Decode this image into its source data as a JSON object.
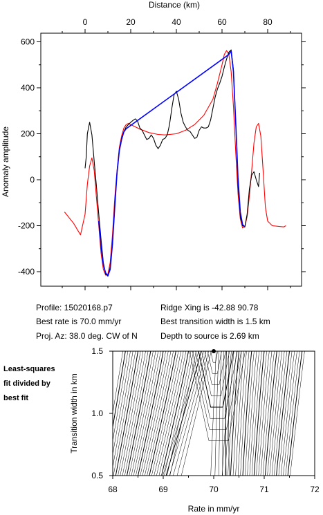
{
  "profile_chart": {
    "type": "line",
    "xlabel": "Distance (km)",
    "ylabel": "Anomaly amplitude",
    "xlim": [
      -9,
      89
    ],
    "ylim": [
      -460,
      620
    ],
    "xticks": [
      0,
      20,
      40,
      60,
      80
    ],
    "yticks": [
      -400,
      -200,
      0,
      200,
      400,
      600
    ],
    "series": [
      {
        "color": "#ff0000",
        "points": [
          [
            -9,
            -140
          ],
          [
            -5,
            -190
          ],
          [
            -2,
            -240
          ],
          [
            0,
            -150
          ],
          [
            1,
            -20
          ],
          [
            2,
            60
          ],
          [
            3,
            95
          ],
          [
            4,
            40
          ],
          [
            5,
            -80
          ],
          [
            6,
            -200
          ],
          [
            7,
            -320
          ],
          [
            8,
            -390
          ],
          [
            9,
            -415
          ],
          [
            10,
            -410
          ],
          [
            11,
            -360
          ],
          [
            12,
            -240
          ],
          [
            13,
            -80
          ],
          [
            14,
            40
          ],
          [
            15,
            140
          ],
          [
            16,
            190
          ],
          [
            17,
            225
          ],
          [
            18,
            240
          ],
          [
            19,
            245
          ],
          [
            21,
            235
          ],
          [
            24,
            220
          ],
          [
            28,
            205
          ],
          [
            32,
            197
          ],
          [
            35,
            195
          ],
          [
            40,
            200
          ],
          [
            44,
            215
          ],
          [
            48,
            240
          ],
          [
            52,
            280
          ],
          [
            56,
            350
          ],
          [
            58,
            420
          ],
          [
            60,
            500
          ],
          [
            61,
            545
          ],
          [
            62,
            562
          ],
          [
            63,
            545
          ],
          [
            64,
            470
          ],
          [
            65,
            320
          ],
          [
            66,
            120
          ],
          [
            67,
            -60
          ],
          [
            68,
            -170
          ],
          [
            69,
            -210
          ],
          [
            70,
            -205
          ],
          [
            71,
            -160
          ],
          [
            72,
            -70
          ],
          [
            73,
            40
          ],
          [
            74,
            160
          ],
          [
            75,
            230
          ],
          [
            76,
            245
          ],
          [
            77,
            190
          ],
          [
            78,
            40
          ],
          [
            79,
            -120
          ],
          [
            80,
            -180
          ],
          [
            82,
            -200
          ],
          [
            87,
            -205
          ],
          [
            88,
            -200
          ]
        ]
      },
      {
        "color": "#000000",
        "points": [
          [
            0,
            50
          ],
          [
            0.5,
            100
          ],
          [
            1,
            200
          ],
          [
            2,
            250
          ],
          [
            3,
            195
          ],
          [
            4,
            80
          ],
          [
            5,
            -30
          ],
          [
            6,
            -150
          ],
          [
            7,
            -260
          ],
          [
            8,
            -360
          ],
          [
            9,
            -410
          ],
          [
            10,
            -420
          ],
          [
            11,
            -380
          ],
          [
            12,
            -280
          ],
          [
            13,
            -120
          ],
          [
            14,
            30
          ],
          [
            15,
            130
          ],
          [
            16,
            180
          ],
          [
            17,
            210
          ],
          [
            18,
            230
          ],
          [
            19,
            240
          ],
          [
            20,
            250
          ],
          [
            21,
            258
          ],
          [
            22,
            265
          ],
          [
            23,
            255
          ],
          [
            24,
            225
          ],
          [
            25,
            215
          ],
          [
            26,
            195
          ],
          [
            27,
            175
          ],
          [
            28,
            180
          ],
          [
            29,
            195
          ],
          [
            30,
            180
          ],
          [
            31,
            150
          ],
          [
            32,
            135
          ],
          [
            33,
            150
          ],
          [
            34,
            175
          ],
          [
            35,
            180
          ],
          [
            36,
            195
          ],
          [
            37,
            240
          ],
          [
            38,
            310
          ],
          [
            39,
            370
          ],
          [
            40,
            385
          ],
          [
            41,
            350
          ],
          [
            42,
            290
          ],
          [
            43,
            250
          ],
          [
            44,
            230
          ],
          [
            45,
            215
          ],
          [
            46,
            210
          ],
          [
            47,
            195
          ],
          [
            48,
            180
          ],
          [
            49,
            185
          ],
          [
            50,
            215
          ],
          [
            51,
            230
          ],
          [
            52,
            225
          ],
          [
            53,
            225
          ],
          [
            54,
            230
          ],
          [
            55,
            260
          ],
          [
            56,
            310
          ],
          [
            57,
            360
          ],
          [
            58,
            395
          ],
          [
            59,
            420
          ],
          [
            60,
            450
          ],
          [
            61,
            490
          ],
          [
            62,
            525
          ],
          [
            63,
            555
          ],
          [
            64,
            565
          ],
          [
            65,
            480
          ],
          [
            66,
            250
          ],
          [
            67,
            -20
          ],
          [
            68,
            -160
          ],
          [
            69,
            -200
          ],
          [
            70,
            -205
          ],
          [
            71,
            -150
          ],
          [
            72,
            -40
          ],
          [
            73,
            20
          ],
          [
            74,
            35
          ],
          [
            75,
            0
          ],
          [
            76,
            -30
          ],
          [
            76.5,
            30
          ]
        ]
      },
      {
        "color": "#0000ff",
        "points": [
          [
            6,
            -180
          ],
          [
            7,
            -290
          ],
          [
            8,
            -370
          ],
          [
            9,
            -405
          ],
          [
            10,
            -418
          ],
          [
            11,
            -390
          ],
          [
            12,
            -280
          ],
          [
            13,
            -120
          ],
          [
            14,
            30
          ],
          [
            15,
            125
          ],
          [
            16,
            175
          ],
          [
            17,
            208
          ],
          [
            18,
            222
          ],
          [
            63,
            545
          ],
          [
            64,
            560
          ],
          [
            65,
            470
          ],
          [
            66,
            250
          ],
          [
            67,
            10
          ],
          [
            68,
            -140
          ],
          [
            69,
            -195
          ],
          [
            70,
            -205
          ]
        ]
      }
    ]
  },
  "info": {
    "profile": "Profile: 15020168.p7",
    "best_rate": "Best rate is 70.0 mm/yr",
    "proj_az": "Proj. Az: 38.0 deg. CW of N",
    "ridge_xing": "Ridge Xing is -42.88 90.78",
    "best_width": "Best transition width is 1.5 km",
    "depth": "Depth to source is   2.69 km"
  },
  "side_note": {
    "line1": "Least-squares",
    "line2": "fit divided by",
    "line3": "best fit"
  },
  "contour_chart": {
    "type": "contour",
    "xlabel": "Rate in mm/yr",
    "ylabel": "Transition width in km",
    "xlim": [
      68,
      72
    ],
    "ylim": [
      0.5,
      1.5
    ],
    "xticks": [
      "68",
      "69",
      "70",
      "71",
      "72"
    ],
    "yticks": [
      "0.5",
      "1.0",
      "1.5"
    ],
    "best_fit": {
      "rate": 70.0,
      "width": 1.5
    }
  }
}
